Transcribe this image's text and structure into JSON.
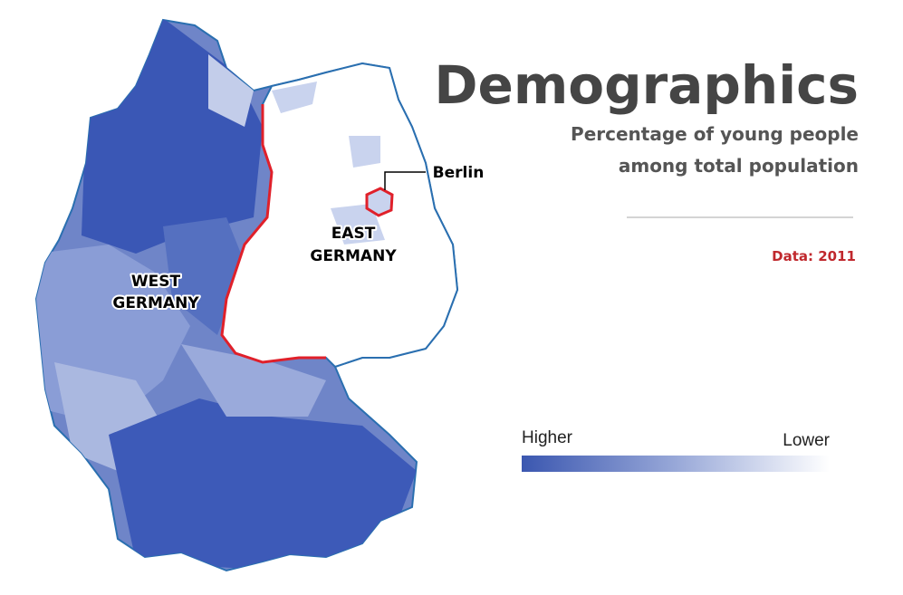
{
  "header": {
    "title": "Demographics",
    "subtitle": [
      "Percentage of young people",
      "among total population"
    ],
    "source": "Data: 2011"
  },
  "legend": {
    "high": "Higher",
    "low": "Lower"
  },
  "map": {
    "west": [
      "WEST",
      "GERMANY"
    ],
    "east": [
      "EAST",
      "GERMANY"
    ],
    "berlin": "Berlin"
  }
}
